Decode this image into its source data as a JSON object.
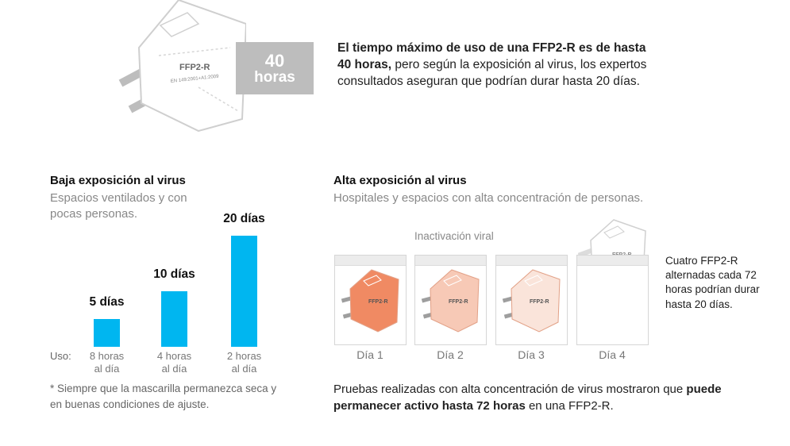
{
  "hero": {
    "mask_text": "FFP2-R",
    "mask_subtext": "EN 149:2001+A1:2009",
    "badge_number": "40",
    "badge_unit": "horas",
    "intro_bold": "El tiempo máximo de uso de una FFP2-R es de hasta 40 horas,",
    "intro_rest": " pero según la exposición al virus, los expertos consultados aseguran que podrían durar hasta 20 días."
  },
  "low": {
    "title": "Baja exposición al virus",
    "subtitle": "Espacios ventilados y con pocas personas.",
    "use_label": "Uso:",
    "bars": [
      {
        "days_label": "5 días",
        "days": 5,
        "use_line1": "8 horas",
        "use_line2": "al día"
      },
      {
        "days_label": "10 días",
        "days": 10,
        "use_line1": "4 horas",
        "use_line2": "al día"
      },
      {
        "days_label": "20 días",
        "days": 20,
        "use_line1": "2 horas",
        "use_line2": "al día"
      }
    ],
    "footnote": "* Siempre que la mascarilla permanezca seca y en buenas condiciones de ajuste.",
    "bar_color": "#00b6f0"
  },
  "high": {
    "title": "Alta exposición al virus",
    "subtitle": "Hospitales y espacios con alta concentración de personas.",
    "inactivation_label": "Inactivación viral",
    "days": [
      {
        "label": "Día 1",
        "fill_color": "#f08a63",
        "fill_level": 0.75
      },
      {
        "label": "Día 2",
        "fill_color": "#f7c9b6",
        "fill_level": 0.65
      },
      {
        "label": "Día 3",
        "fill_color": "#fae4da",
        "fill_level": 0.55
      },
      {
        "label": "Día 4",
        "fill_color": "#ffffff",
        "fill_level": 0.0
      }
    ],
    "side_note": "Cuatro FFP2-R alternadas cada 72 horas podrían durar hasta 20 días.",
    "bottom_pre": "Pruebas realizadas con alta concentración de virus mostraron que ",
    "bottom_bold": "puede permanecer activo hasta 72 horas",
    "bottom_post": " en una FFP2-R.",
    "card_mask_text": "FFP2-R"
  }
}
